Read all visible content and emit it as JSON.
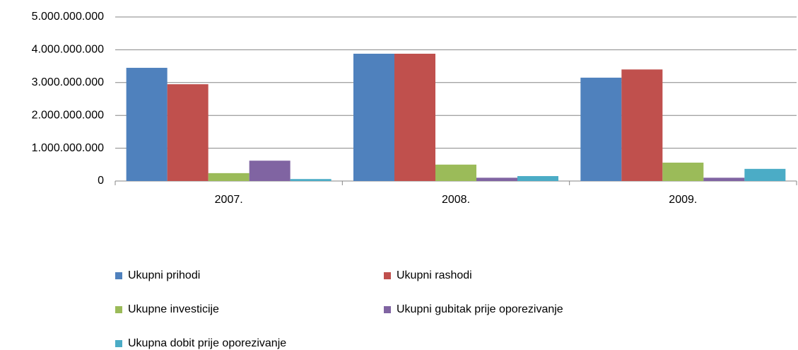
{
  "chart_data": {
    "type": "bar",
    "categories": [
      "2007.",
      "2008.",
      "2009."
    ],
    "series": [
      {
        "name": "Ukupni prihodi",
        "color": "#4f81bd",
        "values": [
          3450000000,
          3880000000,
          3150000000
        ]
      },
      {
        "name": "Ukupni rashodi",
        "color": "#c0504d",
        "values": [
          2950000000,
          3880000000,
          3400000000
        ]
      },
      {
        "name": "Ukupne investicije",
        "color": "#9bbb59",
        "values": [
          240000000,
          500000000,
          560000000
        ]
      },
      {
        "name": "Ukupni gubitak prije oporezivanje",
        "color": "#8064a2",
        "values": [
          620000000,
          100000000,
          100000000
        ]
      },
      {
        "name": "Ukupna dobit prije oporezivanje",
        "color": "#4bacc6",
        "values": [
          60000000,
          150000000,
          370000000
        ]
      }
    ],
    "ylim": [
      0,
      5000000000
    ],
    "yticks": [
      0,
      {
        "value": 1000000000,
        "label": "1.000.000.000"
      },
      {
        "value": 2000000000,
        "label": "2.000.000.000"
      },
      {
        "value": 3000000000,
        "label": "3.000.000.000"
      },
      {
        "value": 4000000000,
        "label": "4.000.000.000"
      },
      {
        "value": 5000000000,
        "label": "5.000.000.000"
      }
    ],
    "grid": true,
    "legend": "bottom"
  }
}
